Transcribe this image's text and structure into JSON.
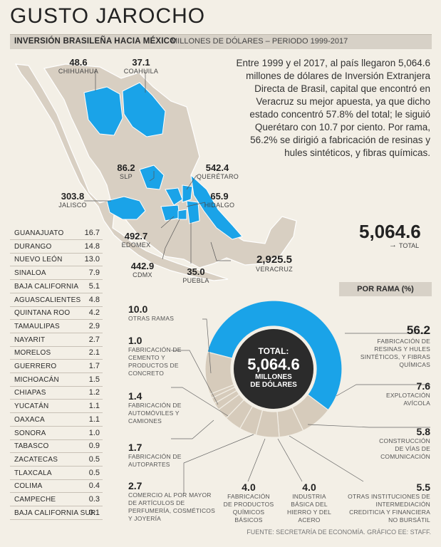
{
  "title": "GUSTO JAROCHO",
  "subtitle": {
    "bold": "INVERSIÓN BRASILEÑA HACIA MÉXICO",
    "rest": "MILLONES DE DÓLARES – PERIODO 1999-2017"
  },
  "intro": "Entre 1999 y el 2017, al país llegaron 5,064.6 millones de dólares de Inversión Extranjera Directa de Brasil, capital que encontró en Veracruz su mejor apuesta, ya que dicho estado concentró 57.8% del total; le siguió Querétaro con 10.7 por ciento. Por rama, 56.2% se dirigió a fabricación de resinas y hules sintéticos, y fibras químicas.",
  "map_labels": [
    {
      "value": "48.6",
      "name": "CHIHUAHUA"
    },
    {
      "value": "37.1",
      "name": "COAHUILA"
    },
    {
      "value": "86.2",
      "name": "SLP"
    },
    {
      "value": "542.4",
      "name": "QUERÉTARO"
    },
    {
      "value": "303.8",
      "name": "JALISCO"
    },
    {
      "value": "65.9",
      "name": "HIDALGO"
    },
    {
      "value": "492.7",
      "name": "EDOMEX"
    },
    {
      "value": "442.9",
      "name": "CDMX"
    },
    {
      "value": "35.0",
      "name": "PUEBLA"
    },
    {
      "value": "2,925.5",
      "name": "VERACRUZ"
    }
  ],
  "states": [
    {
      "name": "GUANAJUATO",
      "value": "16.7"
    },
    {
      "name": "DURANGO",
      "value": "14.8"
    },
    {
      "name": "NUEVO LEÓN",
      "value": "13.0"
    },
    {
      "name": "SINALOA",
      "value": "7.9"
    },
    {
      "name": "BAJA CALIFORNIA",
      "value": "5.1"
    },
    {
      "name": "AGUASCALIENTES",
      "value": "4.8"
    },
    {
      "name": "QUINTANA ROO",
      "value": "4.2"
    },
    {
      "name": "TAMAULIPAS",
      "value": "2.9"
    },
    {
      "name": "NAYARIT",
      "value": "2.7"
    },
    {
      "name": "MORELOS",
      "value": "2.1"
    },
    {
      "name": "GUERRERO",
      "value": "1.7"
    },
    {
      "name": "MICHOACÁN",
      "value": "1.5"
    },
    {
      "name": "CHIAPAS",
      "value": "1.2"
    },
    {
      "name": "YUCATÁN",
      "value": "1.1"
    },
    {
      "name": "OAXACA",
      "value": "1.1"
    },
    {
      "name": "SONORA",
      "value": "1.0"
    },
    {
      "name": "TABASCO",
      "value": "0.9"
    },
    {
      "name": "ZACATECAS",
      "value": "0.5"
    },
    {
      "name": "TLAXCALA",
      "value": "0.5"
    },
    {
      "name": "COLIMA",
      "value": "0.4"
    },
    {
      "name": "CAMPECHE",
      "value": "0.3"
    },
    {
      "name": "BAJA CALIFORNIA SUR",
      "value": "0.1"
    }
  ],
  "total": {
    "value": "5,064.6",
    "label": "TOTAL"
  },
  "por_rama": "POR RAMA (%)",
  "donut_center": {
    "l1": "TOTAL:",
    "l2": "5,064.6",
    "l3": "MILLONES",
    "l4": "DE DÓLARES"
  },
  "source": "FUENTE: SECRETARÍA DE ECONOMÍA. GRÁFICO EE: STAFF.",
  "colors": {
    "blue": "#1aa3e8",
    "beige": "#d6cbbb",
    "dark": "#2b2b2b",
    "map_land": "#d8cfc2"
  },
  "chart_data": {
    "type": "pie",
    "title": "POR RAMA (%)",
    "slices": [
      {
        "label": "FABRICACIÓN DE RESINAS Y HULES SINTÉTICOS, Y FIBRAS QUÍMICAS",
        "value": 56.2
      },
      {
        "label": "EXPLOTACIÓN AVÍCOLA",
        "value": 7.6
      },
      {
        "label": "CONSTRUCCIÓN DE VÍAS DE COMUNICACIÓN",
        "value": 5.8
      },
      {
        "label": "OTRAS INSTITUCIONES DE INTERMEDIACIÓN CREDITICIA Y FINANCIERA NO BURSÁTIL",
        "value": 5.5
      },
      {
        "label": "INDUSTRIA BÁSICA DEL HIERRO Y DEL ACERO",
        "value": 4.0
      },
      {
        "label": "FABRICACIÓN DE PRODUCTOS QUÍMICOS BÁSICOS",
        "value": 4.0
      },
      {
        "label": "COMERCIO AL POR MAYOR DE ARTÍCULOS DE PERFUMERÍA, COSMÉTICOS Y JOYERÍA",
        "value": 2.7
      },
      {
        "label": "FABRICACIÓN DE AUTOPARTES",
        "value": 1.7
      },
      {
        "label": "FABRICACIÓN DE AUTOMÓVILES Y CAMIONES",
        "value": 1.4
      },
      {
        "label": "FABRICACIÓN DE CEMENTO Y PRODUCTOS DE CONCRETO",
        "value": 1.0
      },
      {
        "label": "OTRAS RAMAS",
        "value": 10.0
      }
    ]
  }
}
